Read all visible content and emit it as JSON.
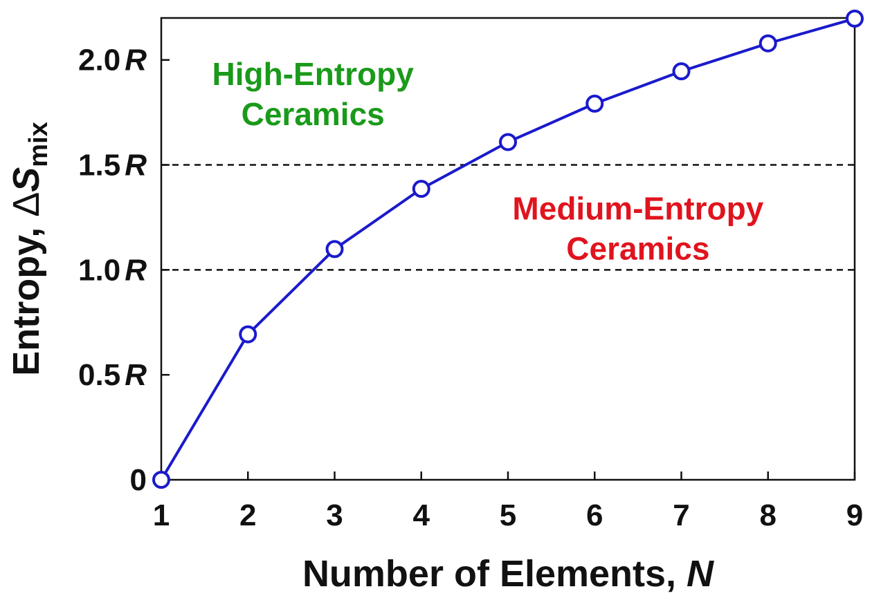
{
  "chart_data": {
    "type": "line",
    "title": "",
    "xlabel": {
      "text": "Number of Elements, ",
      "var": "N"
    },
    "ylabel": {
      "text": "Entropy, ",
      "delta": "Δ",
      "var": "S",
      "sub": "mix"
    },
    "x": [
      1,
      2,
      3,
      4,
      5,
      6,
      7,
      8,
      9
    ],
    "series": [
      {
        "values": [
          0,
          0.693,
          1.099,
          1.386,
          1.609,
          1.792,
          1.946,
          2.079,
          2.197
        ],
        "color": "#1a1acc"
      }
    ],
    "xlim": [
      1,
      9
    ],
    "ylim": [
      0,
      2.2
    ],
    "xticks": [
      {
        "value": 1,
        "label": "1"
      },
      {
        "value": 2,
        "label": "2"
      },
      {
        "value": 3,
        "label": "3"
      },
      {
        "value": 4,
        "label": "4"
      },
      {
        "value": 5,
        "label": "5"
      },
      {
        "value": 6,
        "label": "6"
      },
      {
        "value": 7,
        "label": "7"
      },
      {
        "value": 8,
        "label": "8"
      },
      {
        "value": 9,
        "label": "9"
      }
    ],
    "yticks": [
      {
        "value": 0,
        "num": "0",
        "unit": ""
      },
      {
        "value": 0.5,
        "num": "0.5",
        "unit": "R"
      },
      {
        "value": 1.0,
        "num": "1.0",
        "unit": "R"
      },
      {
        "value": 1.5,
        "num": "1.5",
        "unit": "R"
      },
      {
        "value": 2.0,
        "num": "2.0",
        "unit": "R"
      }
    ],
    "thresholds": [
      1.0,
      1.5
    ],
    "grid": false,
    "legend": "none",
    "annotations": [
      {
        "name": "high-entropy",
        "lines": [
          "High-Entropy",
          "Ceramics"
        ],
        "color": "#1a9a1a",
        "x": 2.75,
        "y": 1.88
      },
      {
        "name": "medium-entropy",
        "lines": [
          "Medium-Entropy",
          "Ceramics"
        ],
        "color": "#e0141e",
        "x": 6.5,
        "y": 1.24
      }
    ]
  }
}
